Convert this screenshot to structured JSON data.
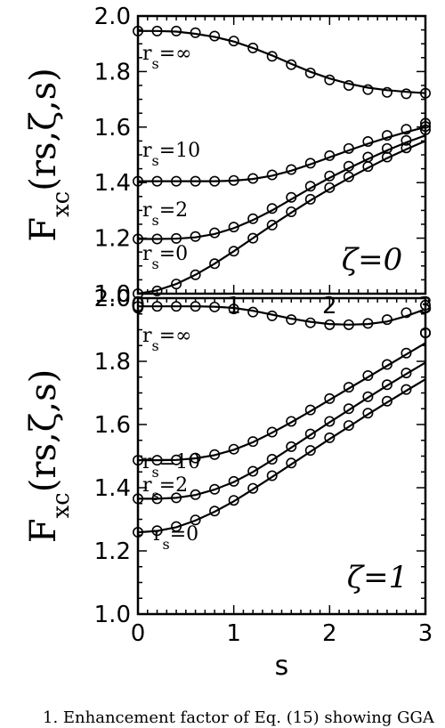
{
  "chart_data": [
    {
      "type": "line",
      "panel_label": "ζ=0",
      "ylabel_main": "F",
      "ylabel_sub": "xc",
      "ylabel_args": "(rs,ζ,s)",
      "xlabel": "",
      "xlim": [
        0,
        3
      ],
      "ylim": [
        1.0,
        2.0
      ],
      "x_ticks": [
        "0",
        "1",
        "2",
        "3"
      ],
      "y_ticks": [
        "1.0",
        "1.2",
        "1.4",
        "1.6",
        "1.8",
        "2.0"
      ],
      "series": [
        {
          "name": "rs=∞",
          "x": [
            0,
            0.2,
            0.4,
            0.6,
            0.8,
            1.0,
            1.2,
            1.4,
            1.6,
            1.8,
            2.0,
            2.2,
            2.4,
            2.6,
            2.8,
            3.0
          ],
          "y": [
            1.946,
            1.946,
            1.944,
            1.936,
            1.925,
            1.908,
            1.885,
            1.858,
            1.828,
            1.799,
            1.775,
            1.756,
            1.742,
            1.733,
            1.727,
            1.722
          ],
          "points_y": [
            1.946,
            1.946,
            1.946,
            1.94,
            1.928,
            1.91,
            1.885,
            1.855,
            1.825,
            1.795,
            1.77,
            1.75,
            1.735,
            1.725,
            1.72,
            1.722
          ]
        },
        {
          "name": "rs=10",
          "x": [
            0,
            0.2,
            0.4,
            0.6,
            0.8,
            1.0,
            1.2,
            1.4,
            1.6,
            1.8,
            2.0,
            2.2,
            2.4,
            2.6,
            2.8,
            3.0
          ],
          "y": [
            1.405,
            1.405,
            1.405,
            1.405,
            1.405,
            1.407,
            1.413,
            1.425,
            1.443,
            1.466,
            1.491,
            1.516,
            1.54,
            1.562,
            1.582,
            1.6
          ],
          "points_y": [
            1.405,
            1.405,
            1.405,
            1.405,
            1.405,
            1.408,
            1.415,
            1.428,
            1.447,
            1.47,
            1.497,
            1.523,
            1.548,
            1.57,
            1.592,
            1.614
          ]
        },
        {
          "name": "rs=2",
          "x": [
            0,
            0.2,
            0.4,
            0.6,
            0.8,
            1.0,
            1.2,
            1.4,
            1.6,
            1.8,
            2.0,
            2.2,
            2.4,
            2.6,
            2.8,
            3.0
          ],
          "y": [
            1.197,
            1.197,
            1.198,
            1.203,
            1.215,
            1.236,
            1.265,
            1.3,
            1.34,
            1.38,
            1.417,
            1.452,
            1.485,
            1.516,
            1.545,
            1.57
          ],
          "points_y": [
            1.197,
            1.197,
            1.199,
            1.206,
            1.219,
            1.24,
            1.27,
            1.307,
            1.347,
            1.387,
            1.424,
            1.459,
            1.492,
            1.523,
            1.552,
            1.602
          ]
        },
        {
          "name": "rs=0",
          "x": [
            0,
            0.2,
            0.4,
            0.6,
            0.8,
            1.0,
            1.2,
            1.4,
            1.6,
            1.8,
            2.0,
            2.2,
            2.4,
            2.6,
            2.8,
            3.0
          ],
          "y": [
            1.0,
            1.012,
            1.035,
            1.068,
            1.108,
            1.153,
            1.2,
            1.247,
            1.292,
            1.336,
            1.377,
            1.416,
            1.453,
            1.488,
            1.52,
            1.55
          ],
          "points_y": [
            1.0,
            1.01,
            1.035,
            1.068,
            1.108,
            1.153,
            1.2,
            1.247,
            1.295,
            1.34,
            1.382,
            1.421,
            1.458,
            1.492,
            1.525,
            1.59
          ]
        }
      ]
    },
    {
      "type": "line",
      "panel_label": "ζ=1",
      "ylabel_main": "F",
      "ylabel_sub": "xc",
      "ylabel_args": "(rs,ζ,s)",
      "xlabel": "s",
      "xlim": [
        0,
        3
      ],
      "ylim": [
        1.0,
        2.0
      ],
      "x_ticks": [
        "0",
        "1",
        "2",
        "3"
      ],
      "y_ticks": [
        "1.0",
        "1.2",
        "1.4",
        "1.6",
        "1.8",
        "2.0"
      ],
      "series": [
        {
          "name": "rs=∞",
          "x": [
            0,
            0.2,
            0.4,
            0.6,
            0.8,
            1.0,
            1.2,
            1.4,
            1.6,
            1.8,
            2.0,
            2.2,
            2.4,
            2.6,
            2.8,
            3.0
          ],
          "y": [
            1.974,
            1.974,
            1.974,
            1.974,
            1.973,
            1.969,
            1.96,
            1.948,
            1.935,
            1.925,
            1.918,
            1.916,
            1.918,
            1.926,
            1.943,
            1.965
          ],
          "points_y": [
            1.974,
            1.974,
            1.974,
            1.974,
            1.972,
            1.966,
            1.956,
            1.944,
            1.932,
            1.922,
            1.916,
            1.916,
            1.92,
            1.932,
            1.954,
            1.978
          ]
        },
        {
          "name": "rs=10",
          "x": [
            0,
            0.2,
            0.4,
            0.6,
            0.8,
            1.0,
            1.2,
            1.4,
            1.6,
            1.8,
            2.0,
            2.2,
            2.4,
            2.6,
            2.8,
            3.0
          ],
          "y": [
            1.487,
            1.487,
            1.488,
            1.493,
            1.503,
            1.52,
            1.544,
            1.574,
            1.607,
            1.642,
            1.678,
            1.714,
            1.75,
            1.786,
            1.822,
            1.858
          ],
          "points_y": [
            1.487,
            1.487,
            1.488,
            1.494,
            1.505,
            1.522,
            1.546,
            1.576,
            1.61,
            1.646,
            1.682,
            1.718,
            1.755,
            1.79,
            1.826,
            1.89
          ]
        },
        {
          "name": "rs=2",
          "x": [
            0,
            0.2,
            0.4,
            0.6,
            0.8,
            1.0,
            1.2,
            1.4,
            1.6,
            1.8,
            2.0,
            2.2,
            2.4,
            2.6,
            2.8,
            3.0
          ],
          "y": [
            1.365,
            1.365,
            1.368,
            1.377,
            1.394,
            1.418,
            1.45,
            1.487,
            1.527,
            1.567,
            1.607,
            1.646,
            1.685,
            1.723,
            1.76,
            1.796
          ],
          "points_y": [
            1.365,
            1.365,
            1.368,
            1.378,
            1.395,
            1.42,
            1.452,
            1.49,
            1.53,
            1.57,
            1.61,
            1.65,
            1.688,
            1.726,
            1.763,
            1.89
          ]
        },
        {
          "name": "rs=0",
          "x": [
            0,
            0.2,
            0.4,
            0.6,
            0.8,
            1.0,
            1.2,
            1.4,
            1.6,
            1.8,
            2.0,
            2.2,
            2.4,
            2.6,
            2.8,
            3.0
          ],
          "y": [
            1.259,
            1.263,
            1.275,
            1.296,
            1.324,
            1.357,
            1.395,
            1.434,
            1.474,
            1.514,
            1.554,
            1.593,
            1.632,
            1.67,
            1.707,
            1.743
          ],
          "points_y": [
            1.259,
            1.264,
            1.277,
            1.298,
            1.326,
            1.36,
            1.398,
            1.438,
            1.478,
            1.518,
            1.558,
            1.597,
            1.636,
            1.674,
            1.711,
            1.89
          ]
        }
      ]
    }
  ],
  "caption": "1. Enhancement factor of Eq. (15) showing GGA"
}
